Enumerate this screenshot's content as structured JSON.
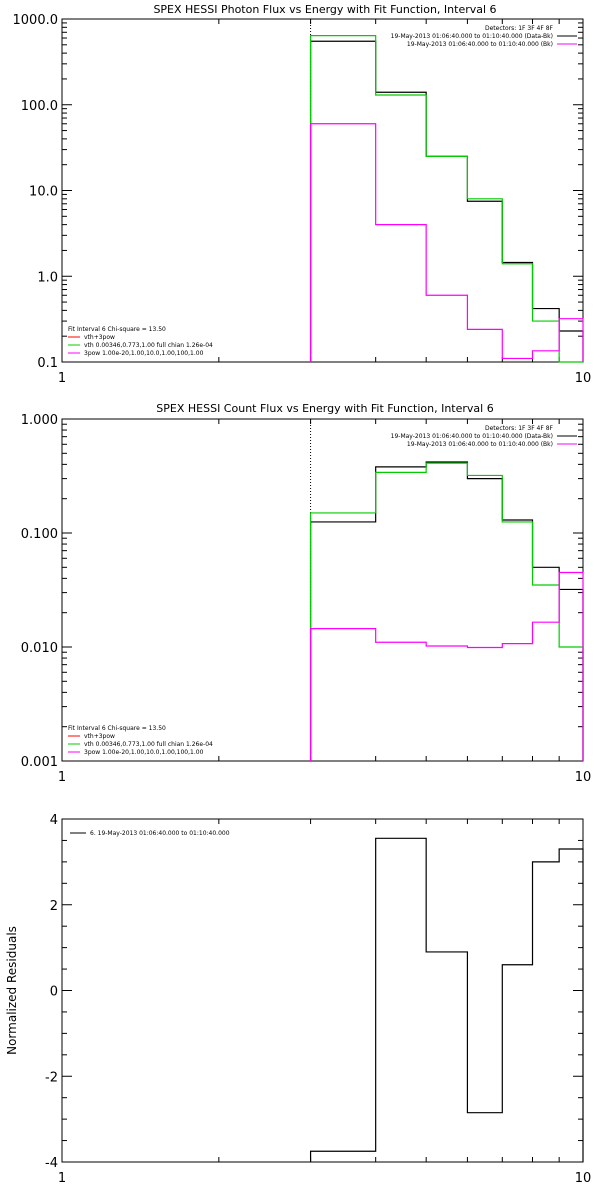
{
  "chart_data": [
    {
      "type": "line",
      "title": "SPEX HESSI Photon Flux vs Energy with Fit Function, Interval 6",
      "xlabel": "",
      "ylabel": "",
      "xscale": "log",
      "yscale": "log",
      "xlim": [
        1,
        10
      ],
      "ylim": [
        0.1,
        1000
      ],
      "xticklabels": [
        "1",
        "10"
      ],
      "yticklabels": [
        "0.1",
        "1.0",
        "10.0",
        "100.0",
        "1000.0"
      ],
      "yticks": [
        0.1,
        1,
        10,
        100,
        1000
      ],
      "vline": 3,
      "legend_topright": {
        "lines": [
          "Detectors: 1F 3F 4F 8F",
          "19-May-2013 01:06:40.000 to 01:10:40.000 (Data-Bk)",
          "19-May-2013 01:06:40.000 to 01:10:40.000 (Bk)"
        ],
        "colors": [
          "#000000",
          "#000000",
          "#ff00ff"
        ]
      },
      "legend_bottomleft": {
        "header": "Fit Interval 6   Chi-square = 13.50",
        "entries": [
          {
            "label": "vth+3pow",
            "color": "#ff0000"
          },
          {
            "label": "vth 0.00346,0.773,1.00   full chian 1.26e-04",
            "color": "#00cc00"
          },
          {
            "label": "3pow 1.00e-20,1.00,10.0,1.00,100,1.00",
            "color": "#ff00ff"
          }
        ]
      },
      "bin_edges": [
        3,
        4,
        5,
        6,
        7,
        8,
        9,
        10
      ],
      "series": [
        {
          "name": "Data-Bk",
          "color": "#000000",
          "values": [
            550,
            140,
            25,
            7.5,
            1.45,
            0.42,
            0.23
          ]
        },
        {
          "name": "vth+3pow",
          "color": "#00cc00",
          "values": [
            640,
            130,
            25,
            8.0,
            1.4,
            0.3,
            0.09
          ]
        },
        {
          "name": "Bk",
          "color": "#ff00ff",
          "values": [
            60,
            4.0,
            0.6,
            0.24,
            0.11,
            0.135,
            0.32
          ]
        }
      ]
    },
    {
      "type": "line",
      "title": "SPEX HESSI Count Flux vs Energy with Fit Function, Interval 6",
      "xlabel": "",
      "ylabel": "",
      "xscale": "log",
      "yscale": "log",
      "xlim": [
        1,
        10
      ],
      "ylim": [
        0.001,
        1
      ],
      "xticklabels": [
        "1",
        "10"
      ],
      "yticklabels": [
        "0.001",
        "0.010",
        "0.100",
        "1.000"
      ],
      "yticks": [
        0.001,
        0.01,
        0.1,
        1
      ],
      "vline": 3,
      "legend_topright": {
        "lines": [
          "Detectors: 1F 3F 4F 8F",
          "19-May-2013 01:06:40.000 to 01:10:40.000 (Data-Bk)",
          "19-May-2013 01:06:40.000 to 01:10:40.000 (Bk)"
        ],
        "colors": [
          "#000000",
          "#000000",
          "#ff00ff"
        ]
      },
      "legend_bottomleft": {
        "header": "Fit Interval 6   Chi-square = 13.50",
        "entries": [
          {
            "label": "vth+3pow",
            "color": "#ff0000"
          },
          {
            "label": "vth 0.00346,0.773,1.00   full chian 1.26e-04",
            "color": "#00cc00"
          },
          {
            "label": "3pow 1.00e-20,1.00,10.0,1.00,100,1.00",
            "color": "#ff00ff"
          }
        ]
      },
      "bin_edges": [
        3,
        4,
        5,
        6,
        7,
        8,
        9,
        10
      ],
      "series": [
        {
          "name": "Data-Bk",
          "color": "#000000",
          "values": [
            0.125,
            0.38,
            0.42,
            0.3,
            0.13,
            0.05,
            0.032
          ]
        },
        {
          "name": "vth+3pow",
          "color": "#00cc00",
          "values": [
            0.15,
            0.34,
            0.41,
            0.32,
            0.125,
            0.035,
            0.01
          ]
        },
        {
          "name": "Bk",
          "color": "#ff00ff",
          "values": [
            0.0145,
            0.011,
            0.0102,
            0.0099,
            0.0107,
            0.0165,
            0.045
          ]
        }
      ]
    },
    {
      "type": "line",
      "title": "",
      "xlabel": "",
      "ylabel": "Normalized Residuals",
      "xscale": "log",
      "yscale": "linear",
      "xlim": [
        1,
        10
      ],
      "ylim": [
        -4,
        4
      ],
      "xticklabels": [
        "1",
        "10"
      ],
      "yticklabels": [
        "-4",
        "-2",
        "0",
        "2",
        "4"
      ],
      "yticks": [
        -4,
        -2,
        0,
        2,
        4
      ],
      "legend": {
        "label": "6. 19-May-2013 01:06:40.000 to 01:10:40.000",
        "color": "#000000"
      },
      "bin_edges": [
        3,
        4,
        5,
        6,
        7,
        8,
        9,
        10
      ],
      "series": [
        {
          "name": "6. 19-May-2013 01:06:40.000 to 01:10:40.000",
          "color": "#000000",
          "values": [
            -3.75,
            3.55,
            0.9,
            -2.85,
            0.6,
            3.0,
            3.3
          ]
        }
      ]
    }
  ]
}
